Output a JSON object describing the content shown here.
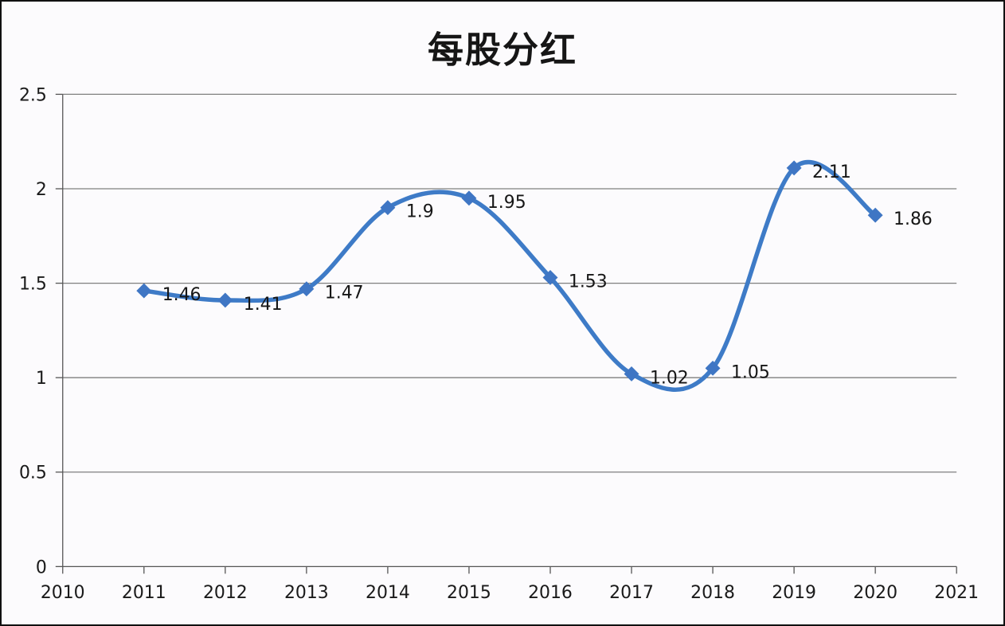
{
  "chart_data": {
    "type": "line",
    "title": "每股分红",
    "categories": [
      2011,
      2012,
      2013,
      2014,
      2015,
      2016,
      2017,
      2018,
      2019,
      2020
    ],
    "values": [
      1.46,
      1.41,
      1.47,
      1.9,
      1.95,
      1.53,
      1.02,
      1.05,
      2.11,
      1.86
    ],
    "point_labels": [
      "1.46",
      "1.41",
      "1.47",
      "1.9",
      "1.95",
      "1.53",
      "1.02",
      "1.05",
      "2.11",
      "1.86"
    ],
    "xlabel": "",
    "ylabel": "",
    "x_axis": {
      "min": 2010,
      "max": 2021,
      "tick_labels": [
        "2010",
        "2011",
        "2012",
        "2013",
        "2014",
        "2015",
        "2016",
        "2017",
        "2018",
        "2019",
        "2020",
        "2021"
      ]
    },
    "y_axis": {
      "min": 0,
      "max": 2.5,
      "step": 0.5,
      "tick_labels": [
        "0",
        "0.5",
        "1",
        "1.5",
        "2",
        "2.5"
      ]
    },
    "ylim": [
      0,
      2.5
    ],
    "grid": "horizontal",
    "legend_position": "none",
    "line_style": "smooth",
    "marker": "diamond",
    "style": {
      "line_color": "#3E7BC7",
      "marker_color": "#3F76C4",
      "grid_color": "#7F7F7F",
      "axis_color": "#555555",
      "text_color": "#1a1a1a",
      "background": "#FCFBFD",
      "frame_border": "#101010"
    }
  }
}
